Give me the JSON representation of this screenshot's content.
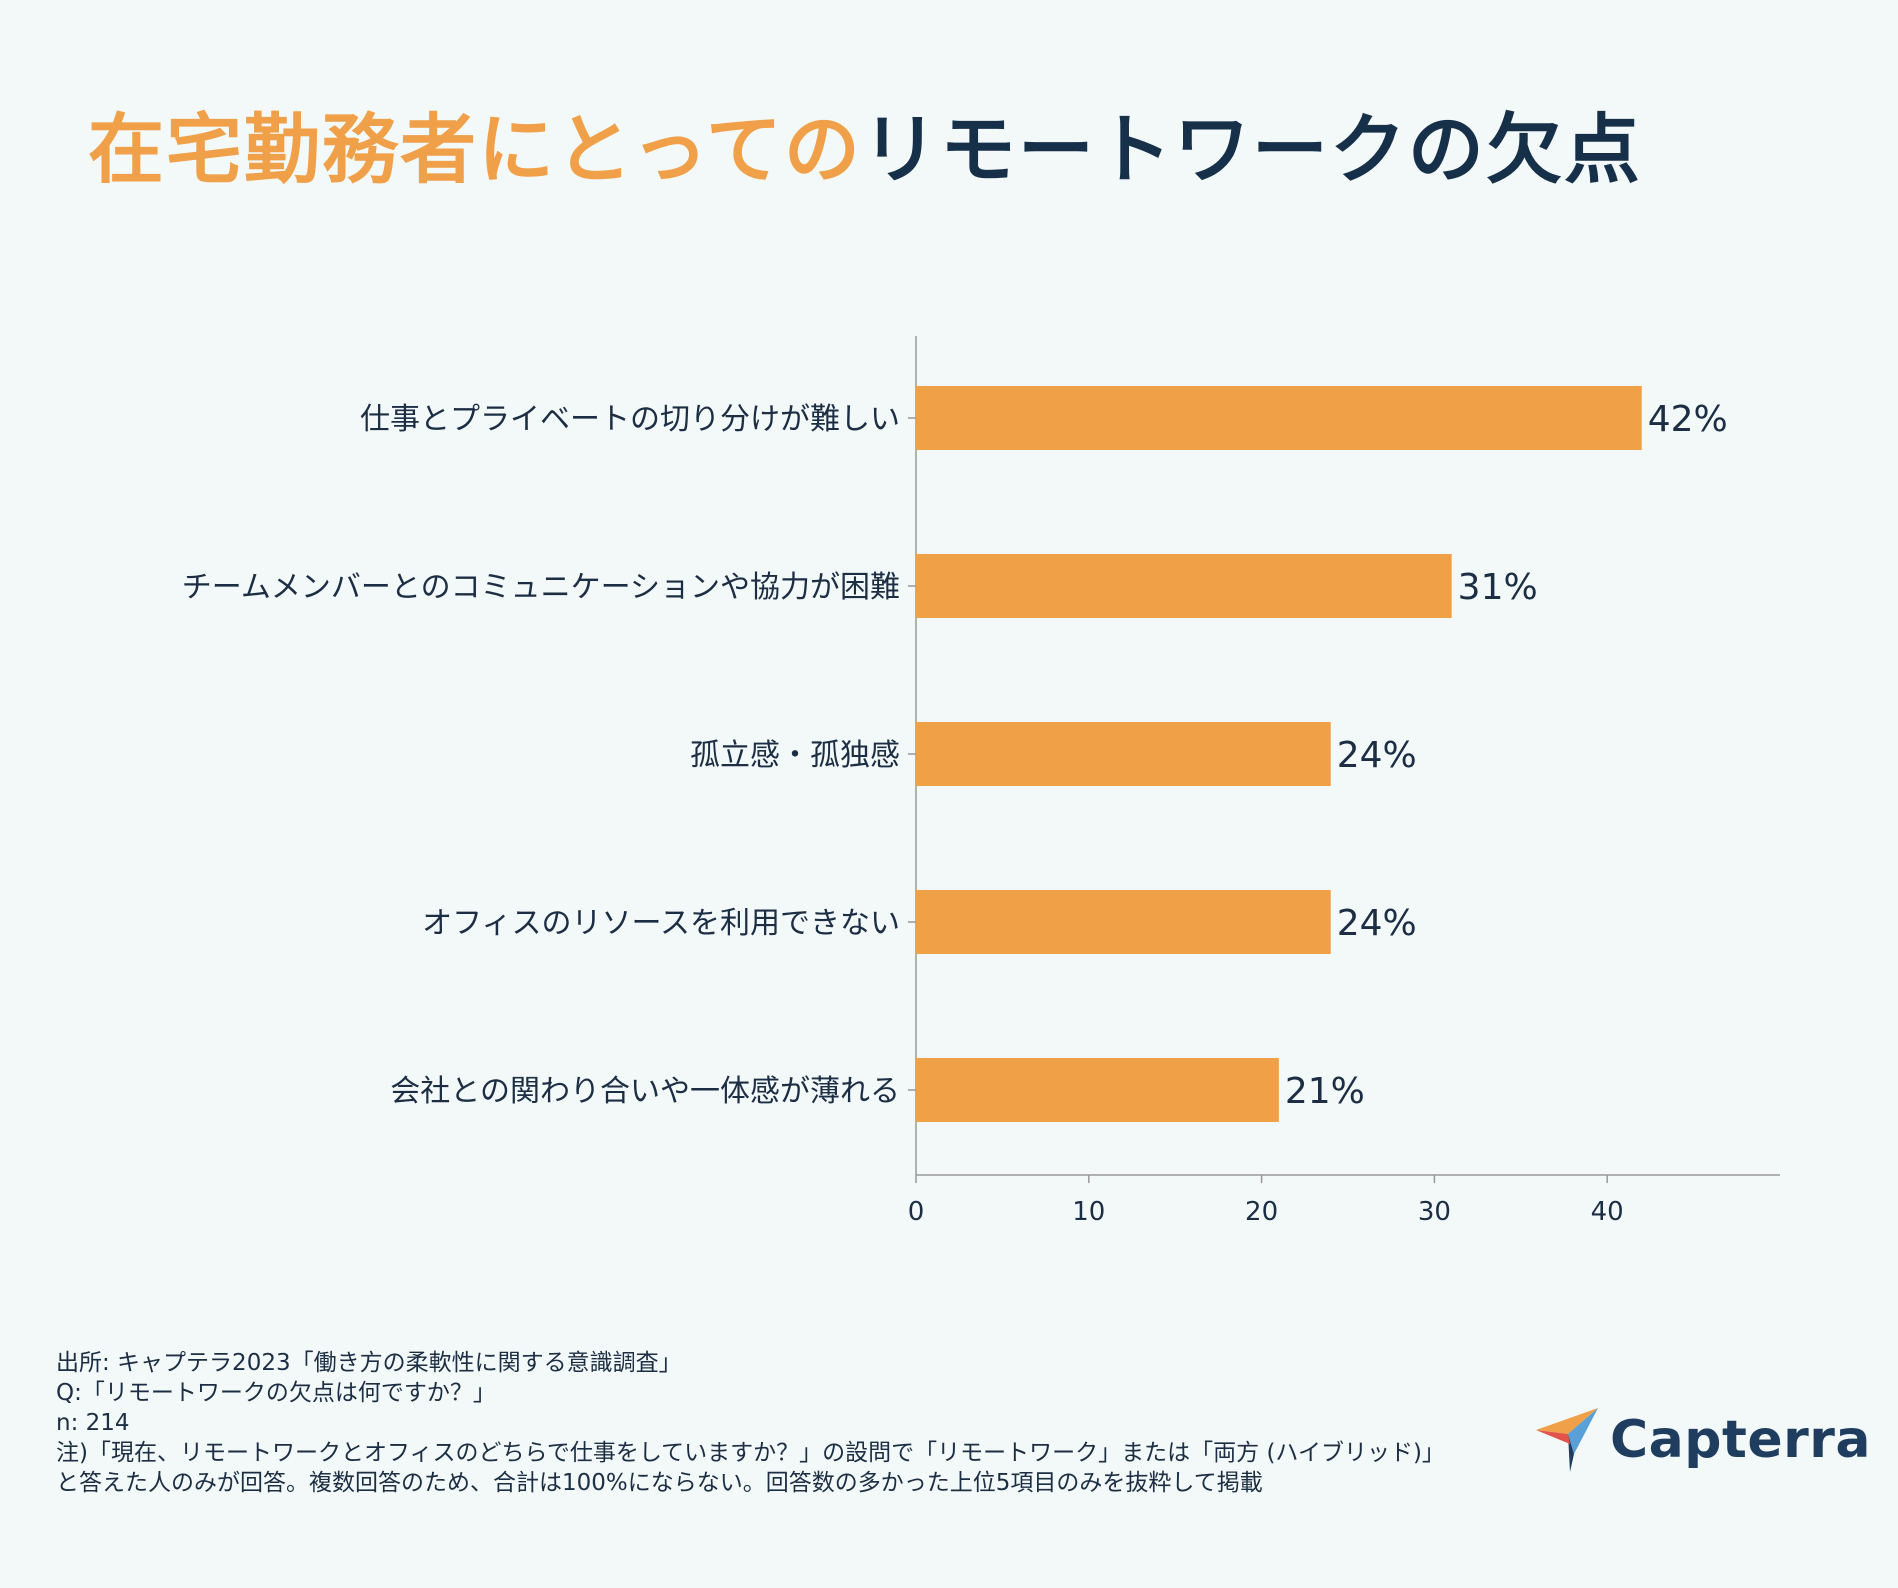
{
  "title": {
    "highlight": "在宅勤務者にとっての",
    "main": "リモートワークの欠点"
  },
  "colors": {
    "bar": "#f0a148",
    "title_highlight": "#f0a048",
    "title_main": "#16304a",
    "text": "#1c2e44",
    "axis": "#999999"
  },
  "chart_data": {
    "type": "bar",
    "orientation": "horizontal",
    "categories": [
      "仕事とプライベートの切り分けが難しい",
      "チームメンバーとのコミュニケーションや協力が困難",
      "孤立感・孤独感",
      "オフィスのリソースを利用できない",
      "会社との関わり合いや一体感が薄れる"
    ],
    "values": [
      42,
      31,
      24,
      24,
      21
    ],
    "value_labels": [
      "42%",
      "31%",
      "24%",
      "24%",
      "21%"
    ],
    "xlim": [
      0,
      50
    ],
    "xticks": [
      0,
      10,
      20,
      30,
      40
    ],
    "xtick_labels": [
      "0",
      "10",
      "20",
      "30",
      "40"
    ],
    "xlabel": "",
    "ylabel": ""
  },
  "footnote": {
    "source": "出所: キャプテラ2023「働き方の柔軟性に関する意識調査」",
    "question": "Q:「リモートワークの欠点は何ですか？」",
    "n": "n: 214",
    "note": "注)「現在、リモートワークとオフィスのどちらで仕事をしていますか？」の設問で「リモートワーク」または「両方 (ハイブリッド)」と答えた人のみが回答。複数回答のため、合計は100%にならない。回答数の多かった上位5項目のみを抜粋して掲載"
  },
  "logo": {
    "text": "Capterra",
    "icon": "capterra-arrow-icon"
  }
}
